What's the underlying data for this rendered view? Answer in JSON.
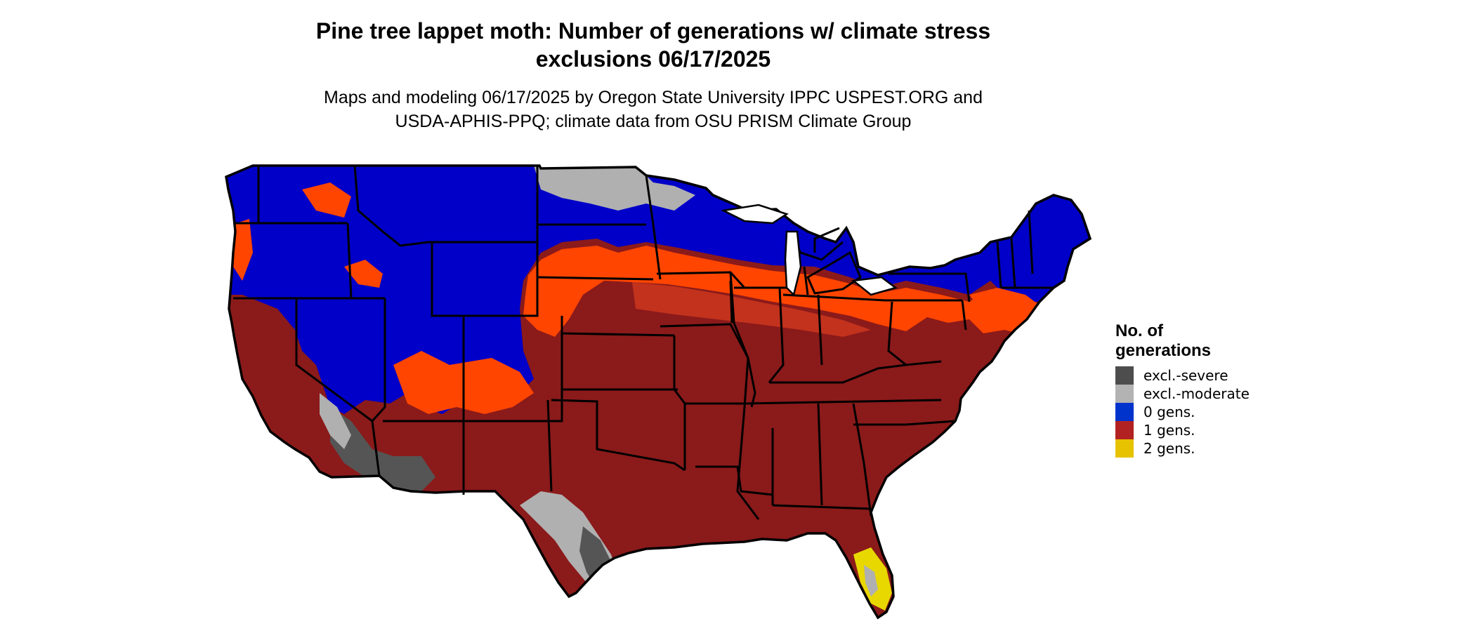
{
  "title": {
    "line1": "Pine tree lappet moth: Number of generations w/ climate stress",
    "line2": "exclusions 06/17/2025"
  },
  "subtitle": {
    "line1": "Maps and modeling 06/17/2025 by Oregon State University IPPC USPEST.ORG and",
    "line2": "USDA-APHIS-PPQ; climate data from OSU PRISM Climate Group"
  },
  "legend": {
    "title_line1": "No. of",
    "title_line2": "generations",
    "items": [
      {
        "label": "excl.-severe",
        "color": "#4d4d4d"
      },
      {
        "label": "excl.-moderate",
        "color": "#b3b3b3"
      },
      {
        "label": "0 gens.",
        "color": "#0033cc"
      },
      {
        "label": "1 gens.",
        "color": "#b22222"
      },
      {
        "label": "2 gens.",
        "color": "#e6c200"
      }
    ]
  },
  "map_colors": {
    "zero_gens": "#0000c8",
    "one_gen_dark": "#8b1a1a",
    "one_gen_orange": "#ff4500",
    "one_gen_mid": "#c8351e",
    "excl_severe": "#555555",
    "excl_moderate": "#b0b0b0",
    "two_gens": "#e8d800",
    "borders": "#000000"
  }
}
